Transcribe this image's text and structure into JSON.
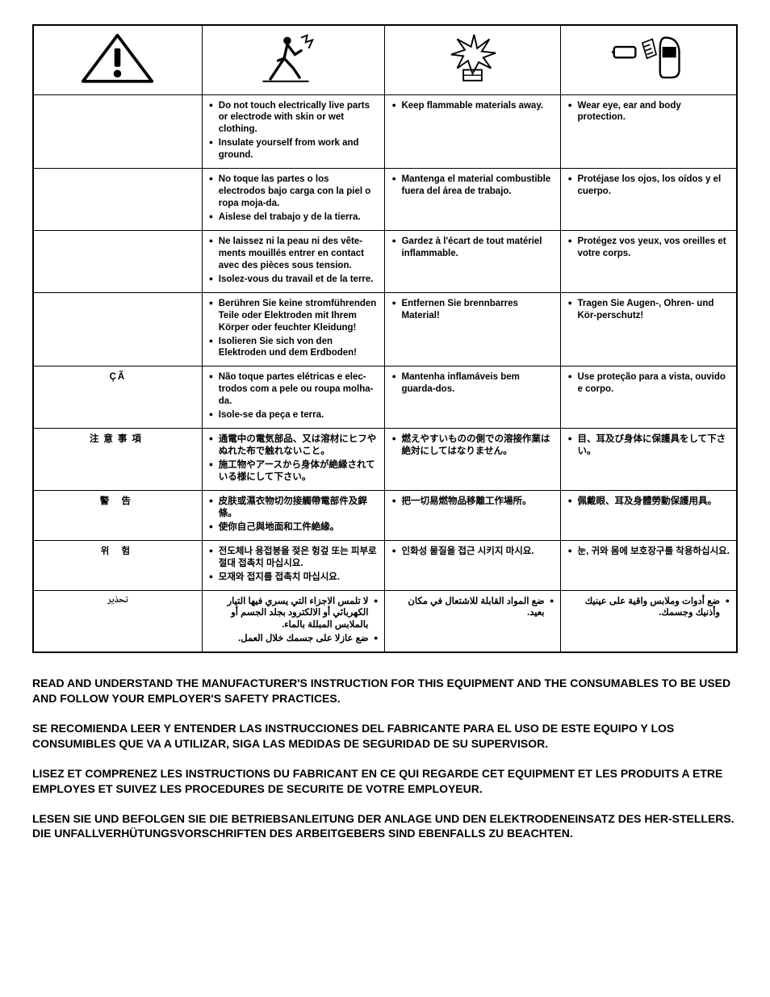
{
  "icons": {
    "h1_alt": "warning-triangle",
    "h2_alt": "tripping-hazard",
    "h3_alt": "explosion-hazard",
    "h4_alt": "eye-ear-protection"
  },
  "rows": [
    {
      "label": "",
      "c2": [
        "Do not touch electrically live parts or electrode with skin or wet clothing.",
        "Insulate yourself from work and ground."
      ],
      "c3": [
        "Keep flammable materials away."
      ],
      "c4": [
        "Wear eye, ear and body protection."
      ]
    },
    {
      "label": "",
      "c2": [
        "No toque las partes o los electrodos bajo carga con la piel o ropa moja-da.",
        "Aislese del trabajo y de la tierra."
      ],
      "c3": [
        "Mantenga el material combustible fuera del área de trabajo."
      ],
      "c4": [
        "Protéjase los ojos, los oídos y el cuerpo."
      ]
    },
    {
      "label": "",
      "c2": [
        "Ne laissez ni la peau ni des vête-ments mouillés entrer en contact avec des pièces sous tension.",
        "Isolez-vous du travail et de la terre."
      ],
      "c3": [
        "Gardez à l'écart de tout matériel inflammable."
      ],
      "c4": [
        "Protégez vos yeux, vos oreilles et votre corps."
      ]
    },
    {
      "label": "",
      "c2": [
        "Berühren Sie keine stromführenden Teile oder Elektroden mit Ihrem Körper oder feuchter Kleidung!",
        "Isolieren Sie sich von den Elektroden und dem Erdboden!"
      ],
      "c3": [
        "Entfernen Sie brennbarres Material!"
      ],
      "c4": [
        "Tragen Sie Augen-, Ohren- und Kör-perschutz!"
      ]
    },
    {
      "label": "ÇÃ",
      "c2": [
        "Não toque partes elétricas e elec-trodos com a pele ou roupa molha-da.",
        "Isole-se da peça e terra."
      ],
      "c3": [
        "Mantenha inflamáveis bem guarda-dos."
      ],
      "c4": [
        "Use proteção para a vista, ouvido e corpo."
      ]
    },
    {
      "label": "注意事項",
      "c2": [
        "通電中の電気部品、又は溶材にヒフやぬれた布で触れないこと。",
        "施工物やアースから身体が絶縁されている様にして下さい。"
      ],
      "c3": [
        "燃えやすいものの側での溶接作業は絶対にしてはなりません。"
      ],
      "c4": [
        "目、耳及び身体に保護具をして下さい。"
      ]
    },
    {
      "label": "警 告",
      "c2": [
        "皮肤或濕衣物切勿接觸帶電部件及銲條。",
        "使你自己與地面和工件絶緣。"
      ],
      "c3": [
        "把一切易燃物品移離工作場所。"
      ],
      "c4": [
        "佩戴眼、耳及身體勞動保護用具。"
      ]
    },
    {
      "label": "위 험",
      "c2": [
        "전도체나 용접봉을 젖은 헝겊 또는 피부로 절대 접촉치 마십시요.",
        "모재와 접지를 접촉치 마십시요."
      ],
      "c3": [
        "인화성 물질을 접근 시키지 마시요."
      ],
      "c4": [
        "눈, 귀와 몸에 보호장구를 착용하십시요."
      ]
    },
    {
      "label": "تحذير",
      "rtl": true,
      "c2": [
        "لا تلمس الاجزاء التي يسري فيها التيار الكهربائي أو الالكترود بجلد الجسم أو بالملابس المبللة بالماء.",
        "ضع عازلا على جسمك خلال العمل."
      ],
      "c3": [
        "ضع المواد القابلة للاشتعال في مكان بعيد."
      ],
      "c4": [
        "ضع أدوات وملابس واقية على عينيك وأذنيك وجسمك."
      ]
    }
  ],
  "paragraphs": [
    "READ AND UNDERSTAND THE MANUFACTURER'S INSTRUCTION FOR THIS EQUIPMENT AND THE CONSUMABLES TO BE USED AND FOLLOW YOUR EMPLOYER'S SAFETY PRACTICES.",
    "SE RECOMIENDA LEER Y ENTENDER LAS INSTRUCCIONES DEL FABRICANTE PARA EL USO DE ESTE EQUIPO Y LOS CONSUMIBLES QUE VA A UTILIZAR, SIGA LAS MEDIDAS DE SEGURIDAD DE SU SUPERVISOR.",
    "LISEZ ET COMPRENEZ LES INSTRUCTIONS DU FABRICANT EN CE QUI REGARDE CET EQUIPMENT ET LES PRODUITS A ETRE EMPLOYES ET SUIVEZ LES PROCEDURES DE SECURITE DE VOTRE EMPLOYEUR.",
    "LESEN SIE UND BEFOLGEN SIE DIE BETRIEBSANLEITUNG DER ANLAGE UND DEN ELEKTRODENEINSATZ DES HER-STELLERS. DIE UNFALLVERHÜTUNGSVORSCHRIFTEN DES ARBEITGEBERS SIND EBENFALLS ZU BEACHTEN."
  ]
}
